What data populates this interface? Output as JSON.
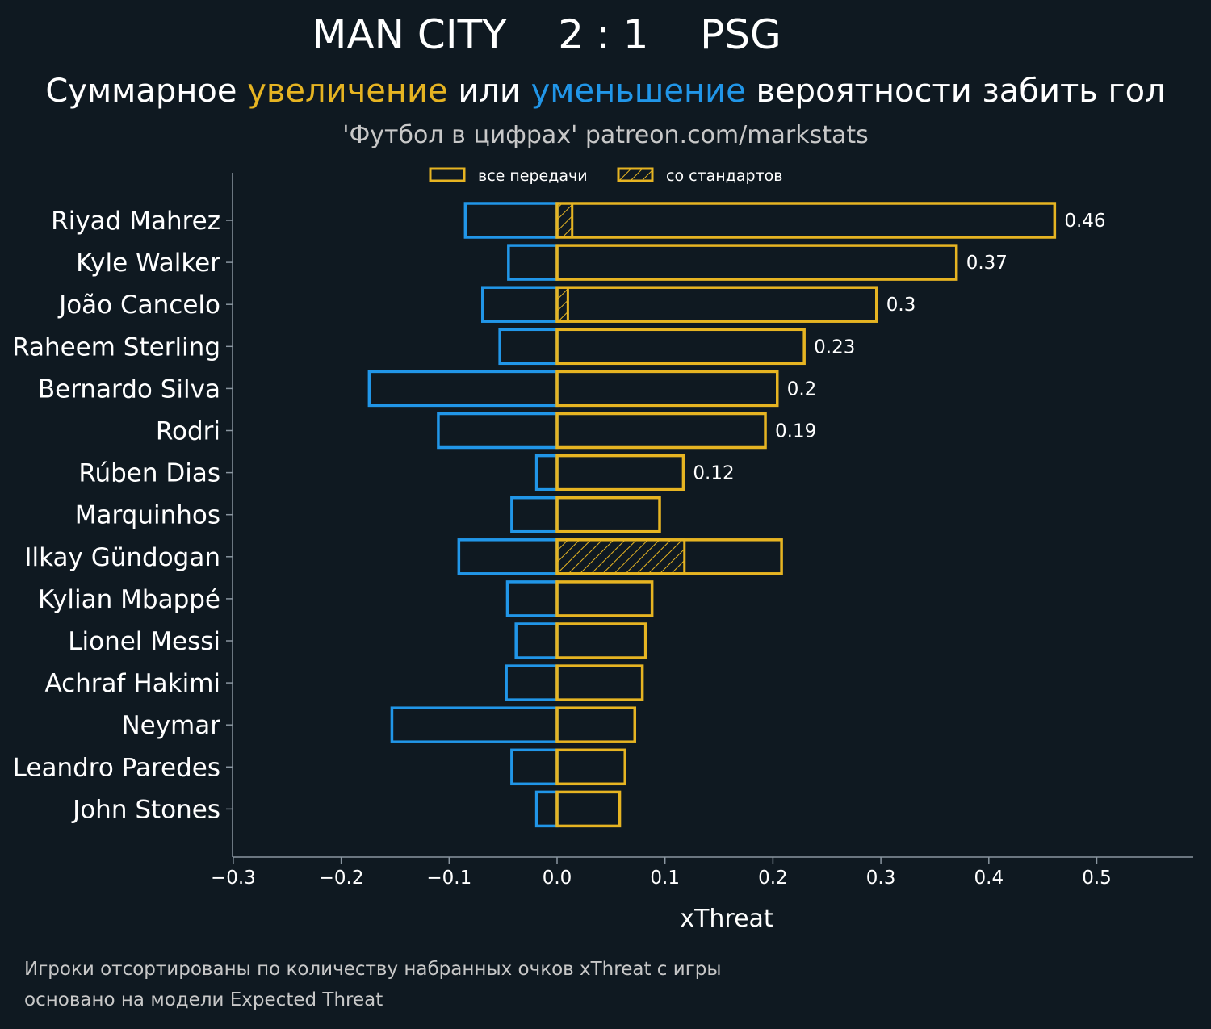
{
  "header": {
    "home": "MAN CITY",
    "score": "2 : 1",
    "away": "PSG",
    "subtitle_pre": "Суммарное ",
    "subtitle_up": "увеличение",
    "subtitle_mid": " или ",
    "subtitle_down": "уменьшение",
    "subtitle_post": " вероятности забить гол",
    "source": "'Футбол в цифрах' patreon.com/markstats"
  },
  "legend": {
    "all_passes": "все передачи",
    "set_pieces": "со стандартов"
  },
  "footer": {
    "line1": "Игроки отсортированы по количеству набранных очков xThreat с игры",
    "line2": "основано на модели Expected Threat"
  },
  "colors": {
    "background": "#0f1921",
    "positive": "#e6b422",
    "negative": "#2196e8",
    "axis": "#8a96a0"
  },
  "chart_data": {
    "type": "bar",
    "orientation": "horizontal",
    "xlabel": "xThreat",
    "xlim": [
      -0.3,
      0.58
    ],
    "xticks": [
      -0.3,
      -0.2,
      -0.1,
      0.0,
      0.1,
      0.2,
      0.3,
      0.4,
      0.5
    ],
    "xtick_labels": [
      "−0.3",
      "−0.2",
      "−0.1",
      "0.0",
      "0.1",
      "0.2",
      "0.3",
      "0.4",
      "0.5"
    ],
    "categories": [
      "Riyad Mahrez",
      "Kyle Walker",
      "João Cancelo",
      "Raheem Sterling",
      "Bernardo Silva",
      "Rodri",
      "Rúben Dias",
      "Marquinhos",
      "Ilkay Gündogan",
      "Kylian Mbappé",
      "Lionel Messi",
      "Achraf Hakimi",
      "Neymar",
      "Leandro Paredes",
      "John Stones"
    ],
    "series": [
      {
        "name": "все передачи",
        "values": [
          0.461,
          0.37,
          0.296,
          0.229,
          0.204,
          0.193,
          0.117,
          0.095,
          0.208,
          0.088,
          0.082,
          0.079,
          0.072,
          0.063,
          0.058
        ]
      },
      {
        "name": "со стандартов",
        "values": [
          0.014,
          0.0,
          0.01,
          0.0,
          0.0,
          0.0,
          0.0,
          0.0,
          0.118,
          0.0,
          0.0,
          0.0,
          0.0,
          0.0,
          0.0
        ]
      },
      {
        "name": "уменьшение",
        "values": [
          -0.085,
          -0.045,
          -0.069,
          -0.053,
          -0.174,
          -0.11,
          -0.019,
          -0.042,
          -0.091,
          -0.046,
          -0.038,
          -0.047,
          -0.153,
          -0.042,
          -0.019
        ]
      }
    ],
    "value_labels": [
      "0.46",
      "0.37",
      "0.3",
      "0.23",
      "0.2",
      "0.19",
      "0.12",
      "",
      "",
      "",
      "",
      "",
      "",
      "",
      ""
    ],
    "grid": false,
    "legend_position": "top-center"
  }
}
